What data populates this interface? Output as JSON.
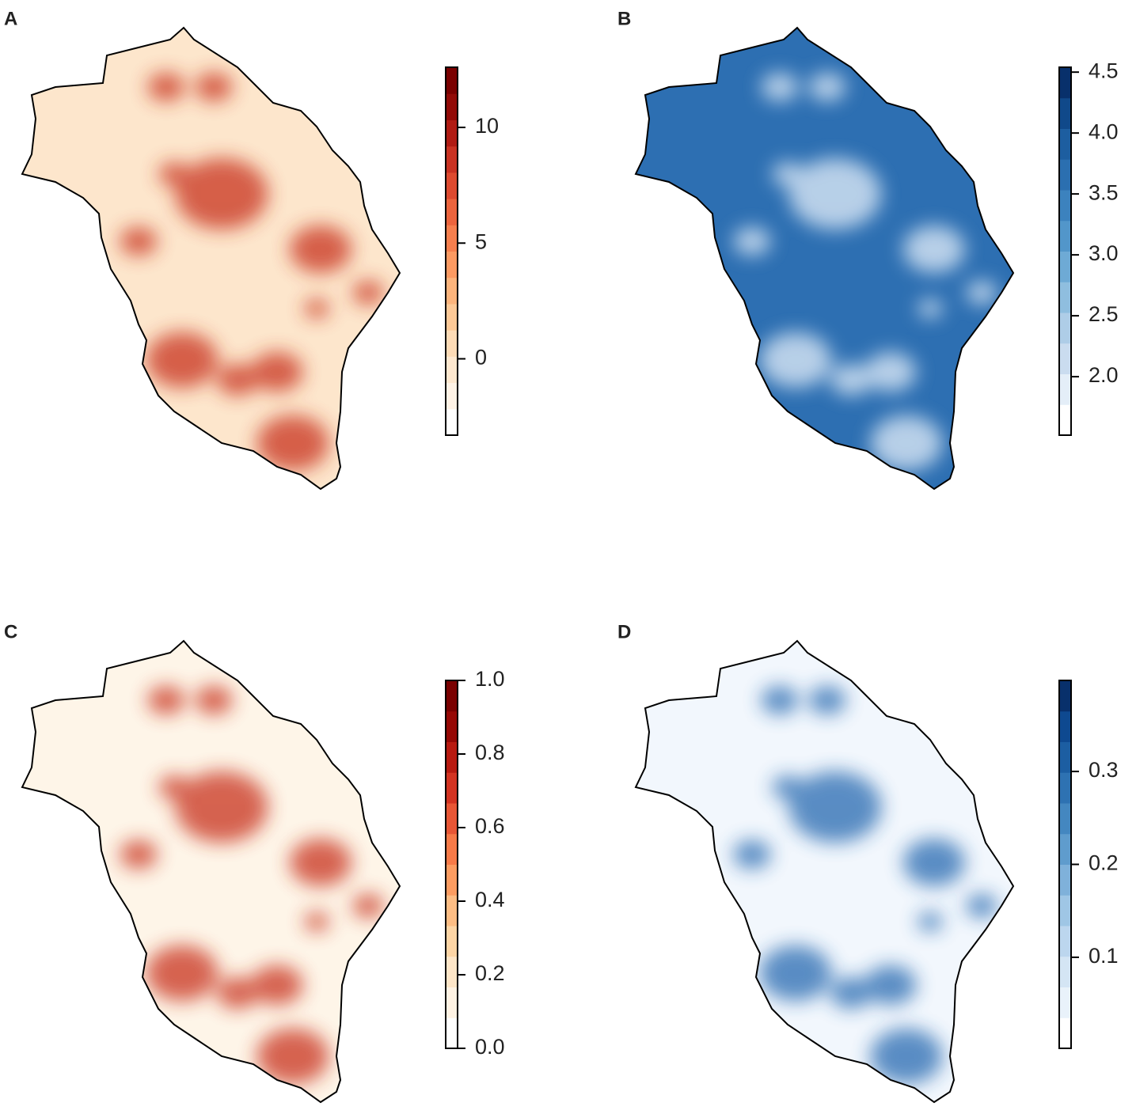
{
  "panels": [
    {
      "label": "A",
      "colorbar": {
        "range": [
          -3.3,
          12.6
        ],
        "ticks": [
          0,
          5,
          10
        ],
        "colors": [
          "#ffffff",
          "#fff3e6",
          "#fee8cf",
          "#fddbb6",
          "#fdc997",
          "#fcb47c",
          "#fc9a62",
          "#f67f4e",
          "#ec643d",
          "#dd4a2f",
          "#c93222",
          "#b01b13",
          "#920a07",
          "#7a0000"
        ]
      },
      "map": {
        "base": "#fde6cc",
        "spots": "#c8321f"
      }
    },
    {
      "label": "B",
      "colorbar": {
        "range": [
          1.52,
          4.54
        ],
        "ticks": [
          {
            "value": 2.0,
            "label": "2.0"
          },
          2.5,
          {
            "value": 3.0,
            "label": "3.0"
          },
          3.5,
          {
            "value": 4.0,
            "label": "4.0"
          },
          4.5
        ],
        "colors": [
          "#ffffff",
          "#e4eef8",
          "#cadcef",
          "#aecde7",
          "#8fbedf",
          "#6eaad5",
          "#5296ca",
          "#3c82be",
          "#2b6fb0",
          "#1d5ea0",
          "#10498a",
          "#08306b"
        ]
      },
      "map": {
        "base": "#2d6fb2",
        "spots": "#e6f0fa"
      }
    },
    {
      "label": "C",
      "colorbar": {
        "range": [
          0,
          1
        ],
        "ticks": [
          {
            "value": 0.0,
            "label": "0.0"
          },
          0.2,
          0.4,
          0.6,
          0.8,
          {
            "value": 1.0,
            "label": "1.0"
          }
        ],
        "colors": [
          "#ffffff",
          "#fff3e4",
          "#fee6c8",
          "#fdd5a5",
          "#fdbd84",
          "#fc9c61",
          "#f77a48",
          "#e85635",
          "#d33321",
          "#b81a10",
          "#960805",
          "#7a0000"
        ]
      },
      "map": {
        "base": "#fef5e8",
        "spots": "#c8321f"
      }
    },
    {
      "label": "D",
      "colorbar": {
        "range": [
          0.002,
          0.398
        ],
        "ticks": [
          0.1,
          0.2,
          0.3
        ],
        "colors": [
          "#ffffff",
          "#e9f2fa",
          "#d4e5f4",
          "#bcd6ee",
          "#9fc6e5",
          "#7fb1da",
          "#5f9ccd",
          "#4487c0",
          "#2e72b2",
          "#1c5ea2",
          "#0e4990",
          "#08306b"
        ]
      },
      "map": {
        "base": "#f2f7fd",
        "spots": "#2569b0"
      }
    }
  ]
}
